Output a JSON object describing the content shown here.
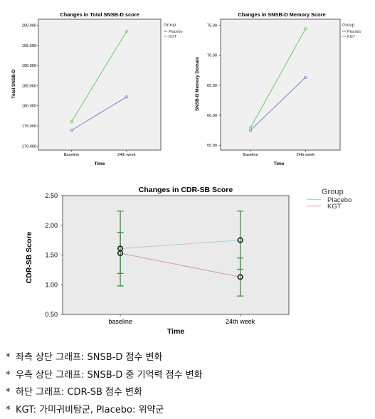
{
  "chart_data": [
    {
      "type": "line",
      "title": "Changes in Total SNSB-D score",
      "xlabel": "Time",
      "ylabel": "Total SNSB-D",
      "categories": [
        "Baseline",
        "24th week"
      ],
      "yticks": [
        "170.000",
        "175.000",
        "180.000",
        "185.000",
        "190.000",
        "195.000",
        "200.000"
      ],
      "ylim": [
        169,
        201.5
      ],
      "legend_title": "Group",
      "series": [
        {
          "name": "Placebo",
          "values": [
            173.9,
            182.2
          ],
          "color": "#7f7fcc"
        },
        {
          "name": "KGT",
          "values": [
            176.0,
            198.5
          ],
          "color": "#66cc66"
        }
      ]
    },
    {
      "type": "line",
      "title": "Changes in SNSB-D Memory Score",
      "xlabel": "Time",
      "ylabel": "SNSB-D Memory Domain",
      "categories": [
        "Baseline",
        "24th week"
      ],
      "yticks": [
        "55.00",
        "60.00",
        "65.00",
        "70.00",
        "75.00"
      ],
      "ylim": [
        54.2,
        76
      ],
      "legend_title": "Group",
      "series": [
        {
          "name": "Placebo",
          "values": [
            57.5,
            66.3
          ],
          "color": "#7f7fcc"
        },
        {
          "name": "KGT",
          "values": [
            57.9,
            74.4
          ],
          "color": "#66cc66"
        }
      ]
    },
    {
      "type": "line",
      "title": "Changes in CDR-SB Score",
      "xlabel": "Time",
      "ylabel": "CDR-SB Score",
      "categories": [
        "baseline",
        "24th week"
      ],
      "yticks": [
        "0.50",
        "1.00",
        "1.50",
        "2.00",
        "2.50"
      ],
      "ylim": [
        0.5,
        2.5
      ],
      "legend_title": "Group",
      "series": [
        {
          "name": "Placebo",
          "values": [
            1.61,
            1.75
          ],
          "color": "#a9cce0",
          "error_bars": [
            [
              0.98,
              2.24
            ],
            [
              1.26,
              2.24
            ]
          ]
        },
        {
          "name": "KGT",
          "values": [
            1.53,
            1.13
          ],
          "color": "#d49a9a",
          "error_bars": [
            [
              1.19,
              1.88
            ],
            [
              0.81,
              1.45
            ]
          ]
        }
      ],
      "error_bar_color": "#339933"
    }
  ],
  "notes": [
    {
      "bullet": "*",
      "text": "좌측 상단 그래프: SNSB-D 점수 변화"
    },
    {
      "bullet": "*",
      "text": "우측 상단 그래프: SNSB-D 중 기억력 점수 변화"
    },
    {
      "bullet": "*",
      "text": "하단 그래프: CDR-SB 점수 변화"
    },
    {
      "bullet": "*",
      "text": "KGT: 가미귀비탕군, Placebo: 위약군"
    }
  ]
}
